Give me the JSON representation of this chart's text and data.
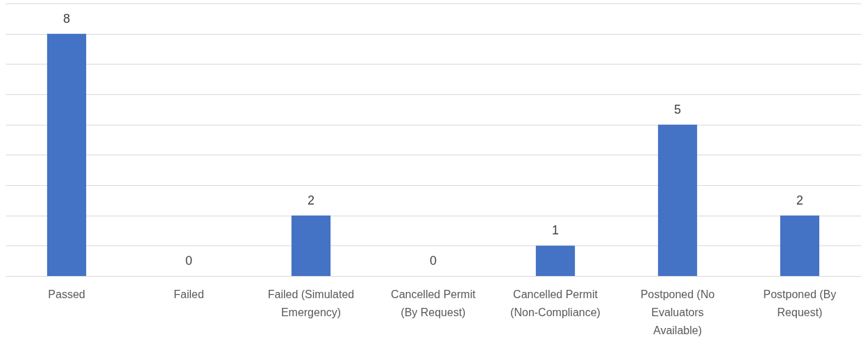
{
  "chart_data": {
    "type": "bar",
    "categories": [
      "Passed",
      "Failed",
      "Failed (Simulated Emergency)",
      "Cancelled Permit (By Request)",
      "Cancelled Permit (Non-Compliance)",
      "Postponed (No Evaluators Available)",
      "Postponed (By Request)"
    ],
    "values": [
      8,
      0,
      2,
      0,
      1,
      5,
      2
    ],
    "color": "#4472c4",
    "ylim": [
      0,
      9
    ],
    "yticks": [
      0,
      1,
      2,
      3,
      4,
      5,
      6,
      7,
      8,
      9
    ],
    "tick_labels": "x",
    "grid": "y",
    "data_labels": true
  }
}
